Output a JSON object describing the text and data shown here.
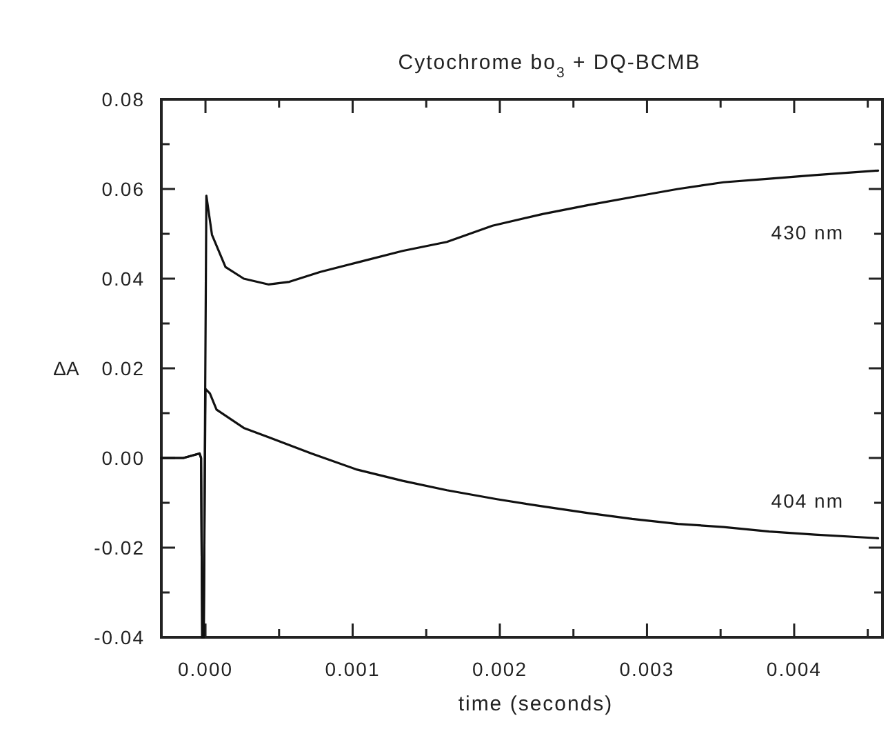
{
  "chart_data": {
    "type": "line",
    "title": "Cytochrome bo$_{3}$ + DQ-BCMB",
    "xlabel": "time (seconds)",
    "ylabel": "ΔA",
    "xlim": [
      -0.0003,
      0.0046
    ],
    "xticks": [
      {
        "value": 0,
        "label": "0.000"
      },
      {
        "value": 0.0005,
        "label": null
      },
      {
        "value": 0.001,
        "label": "0.001"
      },
      {
        "value": 0.0015,
        "label": null
      },
      {
        "value": 0.002,
        "label": "0.002"
      },
      {
        "value": 0.0025,
        "label": null
      },
      {
        "value": 0.003,
        "label": "0.003"
      },
      {
        "value": 0.0035,
        "label": null
      },
      {
        "value": 0.004,
        "label": "0.004"
      },
      {
        "value": 0.0045,
        "label": null
      }
    ],
    "ylim": [
      -0.04,
      0.08
    ],
    "yticks": [
      {
        "value": -0.04,
        "label": "-0.04"
      },
      {
        "value": -0.03,
        "label": null
      },
      {
        "value": -0.02,
        "label": "-0.02"
      },
      {
        "value": -0.01,
        "label": null
      },
      {
        "value": 0,
        "label": "0.00"
      },
      {
        "value": 0.01,
        "label": null
      },
      {
        "value": 0.02,
        "label": "0.02"
      },
      {
        "value": 0.03,
        "label": null
      },
      {
        "value": 0.04,
        "label": "0.04"
      },
      {
        "value": 0.05,
        "label": null
      },
      {
        "value": 0.06,
        "label": "0.06"
      },
      {
        "value": 0.07,
        "label": null
      },
      {
        "value": 0.08,
        "label": "0.08"
      }
    ],
    "grid": false,
    "marker": "none",
    "line_style": "solid",
    "series": [
      {
        "name": "430 nm",
        "color": "#111111",
        "x": [
          -0.0003,
          -0.00015,
          -4e-05,
          -3e-05,
          -2.2e-05,
          -1.2e-05,
          6e-06,
          4.4e-05,
          0.000136,
          0.00026,
          0.00043,
          0.00057,
          0.00078,
          0.00103,
          0.00134,
          0.00164,
          0.00195,
          0.00229,
          0.0026,
          0.0029,
          0.00321,
          0.00352,
          0.00383,
          0.00414,
          0.00457
        ],
        "values": [
          0,
          0,
          0.001,
          0,
          -0.04,
          -0.04,
          0.0585,
          0.0498,
          0.0426,
          0.04,
          0.0387,
          0.0393,
          0.0415,
          0.0436,
          0.0462,
          0.0482,
          0.0518,
          0.0544,
          0.0564,
          0.0582,
          0.06,
          0.0615,
          0.0623,
          0.0631,
          0.0641
        ]
      },
      {
        "name": "404 nm",
        "color": "#111111",
        "x": [
          -0.0003,
          -0.00015,
          -4e-05,
          -3e-05,
          -2.2e-05,
          -1.2e-05,
          0,
          3e-05,
          7.5e-05,
          0.00026,
          0.00043,
          0.00072,
          0.00103,
          0.00134,
          0.00164,
          0.00198,
          0.00229,
          0.0026,
          0.0029,
          0.00321,
          0.00352,
          0.00383,
          0.00414,
          0.00457
        ],
        "values": [
          0,
          0,
          0.001,
          0,
          -0.04,
          -0.04,
          0.0154,
          0.0144,
          0.0108,
          0.0067,
          0.0046,
          0.001,
          -0.0026,
          -0.0051,
          -0.0072,
          -0.0092,
          -0.0108,
          -0.0123,
          -0.0136,
          -0.0147,
          -0.0154,
          -0.0164,
          -0.0171,
          -0.0179
        ]
      }
    ]
  }
}
